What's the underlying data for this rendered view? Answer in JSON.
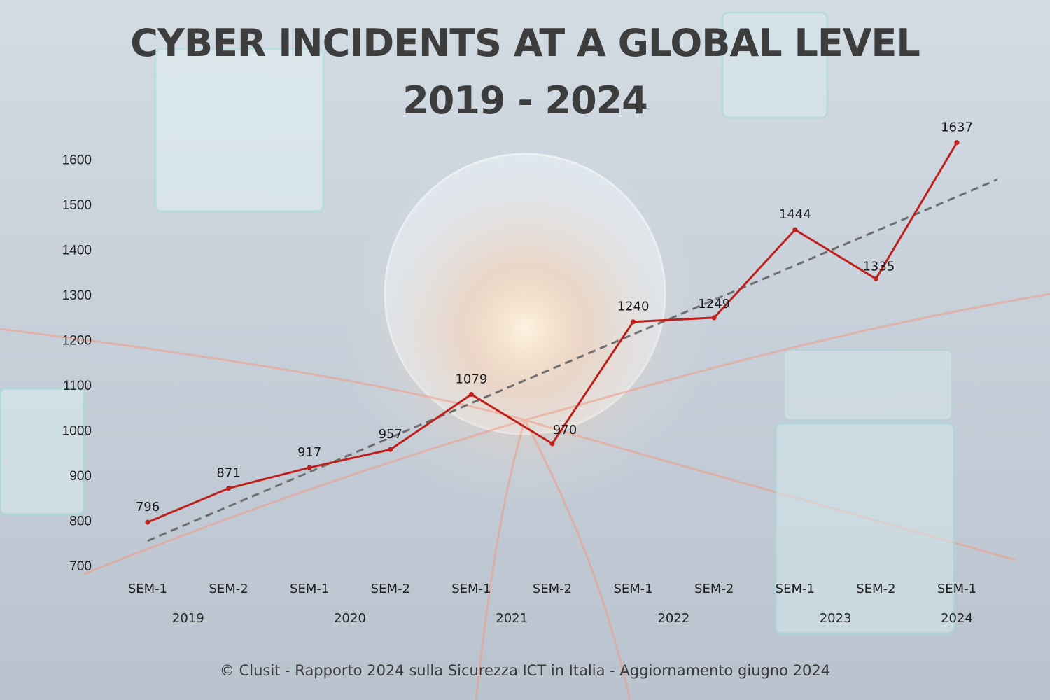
{
  "title_line1": "CYBER INCIDENTS AT A GLOBAL LEVEL",
  "title_line2": "2019 - 2024",
  "footer": "© Clusit - Rapporto 2024 sulla Sicurezza ICT in Italia - Aggiornamento giugno 2024",
  "chart_data": {
    "type": "line",
    "title": "CYBER INCIDENTS AT A GLOBAL LEVEL 2019 - 2024",
    "categories": [
      "SEM-1",
      "SEM-2",
      "SEM-1",
      "SEM-2",
      "SEM-1",
      "SEM-2",
      "SEM-1",
      "SEM-2",
      "SEM-1",
      "SEM-2",
      "SEM-1"
    ],
    "years": [
      "2019",
      "2020",
      "2021",
      "2022",
      "2023",
      "2024"
    ],
    "series": [
      {
        "values": [
          796,
          871,
          917,
          957,
          1079,
          970,
          1240,
          1249,
          1444,
          1335,
          1637
        ],
        "color": "#c0201c"
      }
    ],
    "trendline": {
      "style": "dashed",
      "color": "#6e6e6e"
    },
    "yticks": [
      700,
      800,
      900,
      1000,
      1100,
      1200,
      1300,
      1400,
      1500,
      1600
    ],
    "ylim": [
      700,
      1600
    ],
    "grid": false,
    "legend": "none",
    "data_labels": true
  }
}
